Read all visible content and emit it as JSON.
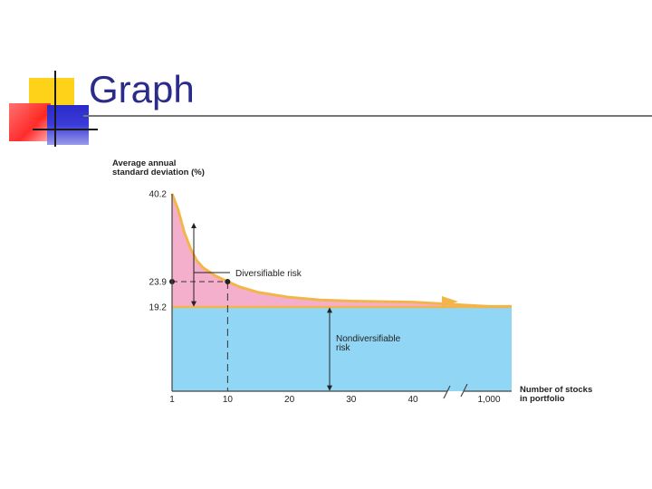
{
  "slide": {
    "title": "Graph",
    "colors": {
      "title": "#2b2b8a",
      "yellow": "#ffd21a",
      "red": "#ff2a2a",
      "blue": "#3030c8"
    }
  },
  "chart_data": {
    "type": "area",
    "title": "",
    "ylabel": [
      "Average annual",
      "standard deviation (%)"
    ],
    "xlabel": [
      "Number of stocks",
      "in portfolio"
    ],
    "y_ticks": [
      "40.2",
      "23.9",
      "19.2"
    ],
    "x_ticks": [
      "1",
      "10",
      "20",
      "30",
      "40",
      "1,000"
    ],
    "x_axis_break_before": "1,000",
    "curve": {
      "x": [
        1,
        2,
        3,
        4,
        5,
        6,
        8,
        10,
        12,
        15,
        20,
        25,
        30,
        40,
        1000
      ],
      "y": [
        40.2,
        37.2,
        33.0,
        30.0,
        27.8,
        26.5,
        25.0,
        23.9,
        22.9,
        21.9,
        21.0,
        20.5,
        20.3,
        20.1,
        19.3
      ]
    },
    "nondiversifiable_level": 19.2,
    "highlighted_point": {
      "x": 10,
      "y": 23.9
    },
    "annotations": {
      "diversifiable": "Diversifiable risk",
      "nondiversifiable": [
        "Nondiversifiable",
        "risk"
      ]
    },
    "colors": {
      "diversifiable": "#f4afcd",
      "nondiversifiable": "#91d7f5",
      "curve": "#f3b54a"
    }
  }
}
